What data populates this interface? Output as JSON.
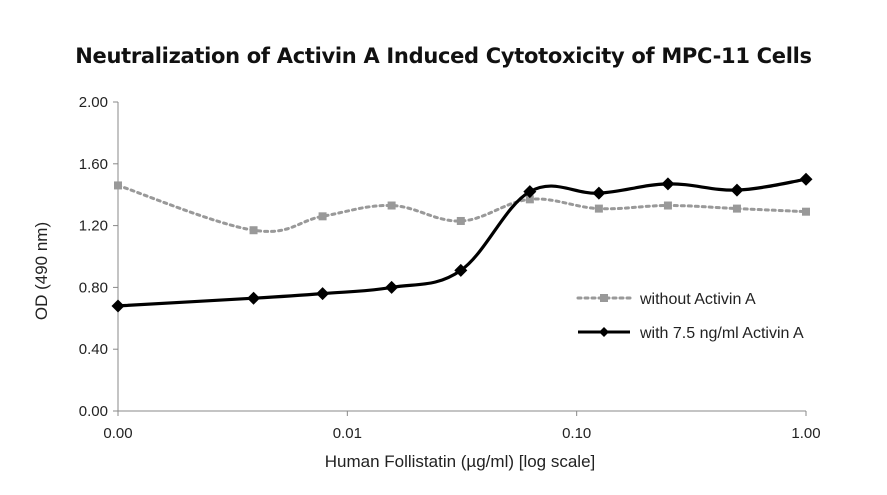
{
  "chart_data": {
    "type": "line",
    "title": "Neutralization of Activin A Induced Cytotoxicity of MPC-11 Cells",
    "xlabel": "Human Follistatin (µg/ml) [log scale]",
    "ylabel": "OD (490 nm)",
    "x_scale": "log",
    "x_tick_labels": [
      "0.00",
      "0.01",
      "0.10",
      "1.00"
    ],
    "y_tick_labels": [
      "0.00",
      "0.40",
      "0.80",
      "1.20",
      "1.60",
      "2.00"
    ],
    "ylim": [
      0,
      2.0
    ],
    "grid": false,
    "legend_position": "right",
    "x": [
      0.001,
      0.0039,
      0.0078,
      0.0156,
      0.03125,
      0.0625,
      0.125,
      0.25,
      0.5,
      1.0
    ],
    "series": [
      {
        "name": "without Activin A",
        "color": "#999999",
        "style": "dotted",
        "marker": "square",
        "values": [
          1.46,
          1.17,
          1.26,
          1.33,
          1.23,
          1.37,
          1.31,
          1.33,
          1.31,
          1.29
        ]
      },
      {
        "name": "with 7.5 ng/ml Activin A",
        "color": "#000000",
        "style": "solid",
        "marker": "diamond",
        "values": [
          0.68,
          0.73,
          0.76,
          0.8,
          0.91,
          1.42,
          1.41,
          1.47,
          1.43,
          1.5
        ]
      }
    ]
  }
}
